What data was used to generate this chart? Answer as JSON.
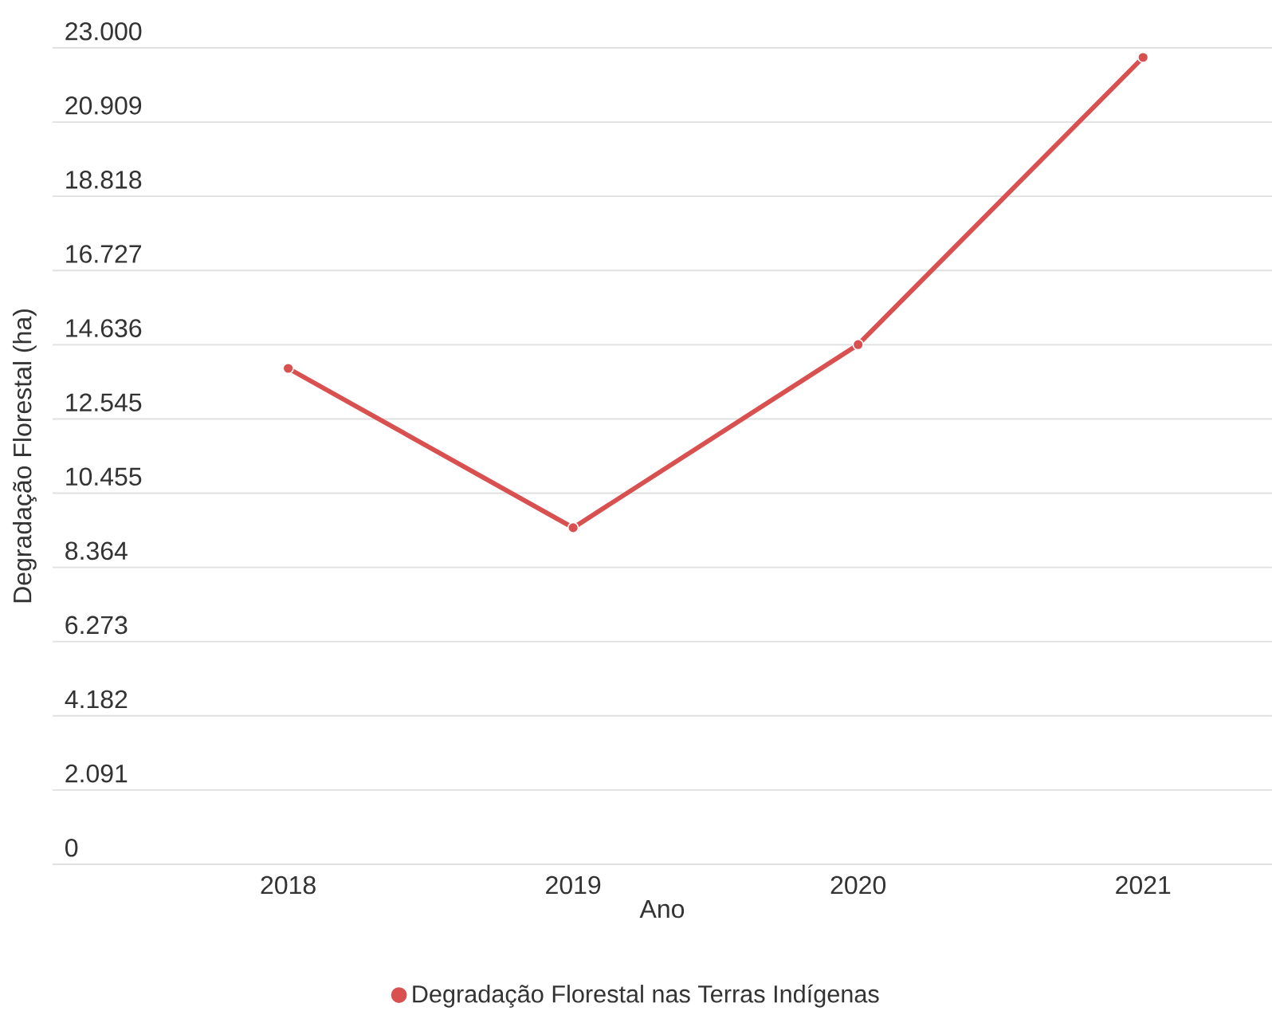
{
  "chart_data": {
    "type": "line",
    "xlabel": "Ano",
    "ylabel": "Degradação Florestal (ha)",
    "categories": [
      "2018",
      "2019",
      "2020",
      "2021"
    ],
    "series": [
      {
        "name": "Degradação Florestal nas Terras Indígenas",
        "color": "#d95050",
        "values": [
          13970,
          9480,
          14640,
          22730
        ]
      }
    ],
    "ylim": [
      0,
      23000
    ],
    "yticks": [
      0,
      {
        "value": 2091,
        "label": "2.091"
      },
      {
        "value": 4182,
        "label": "4.182"
      },
      {
        "value": 6273,
        "label": "6.273"
      },
      {
        "value": 8364,
        "label": "8.364"
      },
      {
        "value": 10455,
        "label": "10.455"
      },
      {
        "value": 12545,
        "label": "12.545"
      },
      {
        "value": 14636,
        "label": "14.636"
      },
      {
        "value": 16727,
        "label": "16.727"
      },
      {
        "value": 18818,
        "label": "18.818"
      },
      {
        "value": 20909,
        "label": "20.909"
      },
      {
        "value": 23000,
        "label": "23.000"
      }
    ],
    "grid": "y",
    "legend": "bottom",
    "marker": "circle",
    "line_style": "solid"
  }
}
